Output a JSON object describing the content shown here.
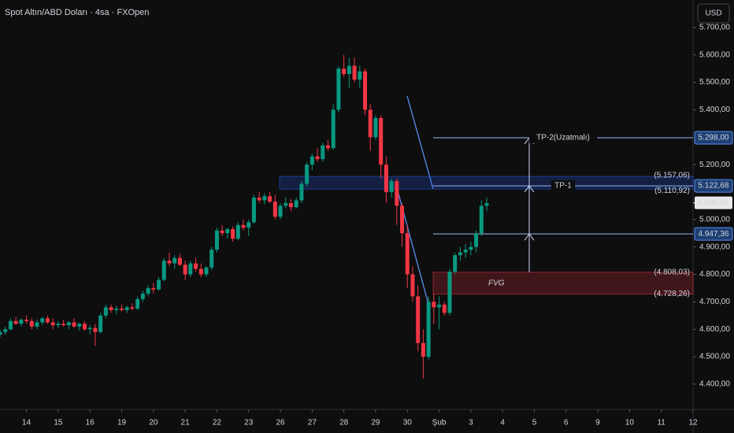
{
  "chart_data": {
    "type": "candlestick",
    "title": "Spot Altın/ABD Doları · 4sa · FXOpen",
    "currency_button": "USD",
    "up_color": "#089981",
    "down_color": "#f23645",
    "xlim": [
      1,
      132
    ],
    "xticks": [
      {
        "value": 6,
        "label": "14"
      },
      {
        "value": 12,
        "label": "15"
      },
      {
        "value": 18,
        "label": "16"
      },
      {
        "value": 24,
        "label": "19"
      },
      {
        "value": 30,
        "label": "20"
      },
      {
        "value": 36,
        "label": "21"
      },
      {
        "value": 42,
        "label": "22"
      },
      {
        "value": 48,
        "label": "23"
      },
      {
        "value": 54,
        "label": "26"
      },
      {
        "value": 60,
        "label": "27"
      },
      {
        "value": 66,
        "label": "28"
      },
      {
        "value": 72,
        "label": "29"
      },
      {
        "value": 78,
        "label": "30"
      },
      {
        "value": 84,
        "label": "Şub"
      },
      {
        "value": 90,
        "label": "3"
      },
      {
        "value": 96,
        "label": "4"
      },
      {
        "value": 102,
        "label": "5"
      },
      {
        "value": 108,
        "label": "6"
      },
      {
        "value": 114,
        "label": "9"
      },
      {
        "value": 120,
        "label": "10"
      },
      {
        "value": 126,
        "label": "11"
      },
      {
        "value": 132,
        "label": "12"
      }
    ],
    "ylim": [
      4308,
      5800
    ],
    "yticks": [
      {
        "value": 4400,
        "label": "4.400,00"
      },
      {
        "value": 4500,
        "label": "4.500,00"
      },
      {
        "value": 4600,
        "label": "4.600,00"
      },
      {
        "value": 4700,
        "label": "4.700,00"
      },
      {
        "value": 4800,
        "label": "4.800,00"
      },
      {
        "value": 4900,
        "label": "4.900,00"
      },
      {
        "value": 5000,
        "label": "5.000,00"
      },
      {
        "value": 5200,
        "label": "5.200,00"
      },
      {
        "value": 5400,
        "label": "5.400,00"
      },
      {
        "value": 5500,
        "label": "5.500,00"
      },
      {
        "value": 5600,
        "label": "5.600,00"
      },
      {
        "value": 5700,
        "label": "5.700,00"
      }
    ],
    "candles": [
      [
        4580,
        4600,
        4570,
        4590
      ],
      [
        4590,
        4610,
        4580,
        4600
      ],
      [
        4600,
        4640,
        4595,
        4630
      ],
      [
        4630,
        4645,
        4615,
        4620
      ],
      [
        4620,
        4640,
        4610,
        4635
      ],
      [
        4635,
        4650,
        4620,
        4630
      ],
      [
        4630,
        4640,
        4600,
        4610
      ],
      [
        4610,
        4635,
        4600,
        4625
      ],
      [
        4625,
        4645,
        4615,
        4640
      ],
      [
        4640,
        4650,
        4620,
        4625
      ],
      [
        4625,
        4640,
        4600,
        4615
      ],
      [
        4615,
        4630,
        4605,
        4620
      ],
      [
        4620,
        4635,
        4610,
        4615
      ],
      [
        4615,
        4630,
        4600,
        4625
      ],
      [
        4625,
        4640,
        4605,
        4610
      ],
      [
        4610,
        4625,
        4595,
        4620
      ],
      [
        4620,
        4630,
        4595,
        4600
      ],
      [
        4600,
        4615,
        4580,
        4605
      ],
      [
        4605,
        4620,
        4540,
        4590
      ],
      [
        4590,
        4660,
        4585,
        4650
      ],
      [
        4650,
        4690,
        4640,
        4680
      ],
      [
        4680,
        4690,
        4660,
        4670
      ],
      [
        4670,
        4685,
        4655,
        4675
      ],
      [
        4675,
        4690,
        4665,
        4670
      ],
      [
        4670,
        4685,
        4660,
        4680
      ],
      [
        4680,
        4695,
        4670,
        4675
      ],
      [
        4675,
        4720,
        4670,
        4710
      ],
      [
        4710,
        4740,
        4700,
        4730
      ],
      [
        4730,
        4760,
        4720,
        4750
      ],
      [
        4750,
        4770,
        4730,
        4745
      ],
      [
        4745,
        4790,
        4740,
        4780
      ],
      [
        4780,
        4860,
        4775,
        4850
      ],
      [
        4850,
        4880,
        4830,
        4840
      ],
      [
        4840,
        4870,
        4820,
        4860
      ],
      [
        4860,
        4875,
        4830,
        4835
      ],
      [
        4835,
        4850,
        4780,
        4800
      ],
      [
        4800,
        4850,
        4790,
        4840
      ],
      [
        4840,
        4860,
        4810,
        4820
      ],
      [
        4820,
        4840,
        4790,
        4800
      ],
      [
        4800,
        4830,
        4790,
        4825
      ],
      [
        4825,
        4900,
        4815,
        4890
      ],
      [
        4890,
        4970,
        4880,
        4960
      ],
      [
        4960,
        4980,
        4940,
        4950
      ],
      [
        4950,
        4970,
        4930,
        4965
      ],
      [
        4965,
        4975,
        4920,
        4930
      ],
      [
        4930,
        4990,
        4925,
        4980
      ],
      [
        4980,
        5000,
        4960,
        4970
      ],
      [
        4970,
        5000,
        4940,
        4990
      ],
      [
        4990,
        5090,
        4985,
        5080
      ],
      [
        5080,
        5100,
        5060,
        5070
      ],
      [
        5070,
        5095,
        5055,
        5085
      ],
      [
        5085,
        5100,
        5060,
        5065
      ],
      [
        5065,
        5090,
        5000,
        5010
      ],
      [
        5010,
        5060,
        5000,
        5050
      ],
      [
        5050,
        5080,
        5040,
        5060
      ],
      [
        5060,
        5075,
        5030,
        5045
      ],
      [
        5045,
        5080,
        5040,
        5070
      ],
      [
        5070,
        5140,
        5060,
        5130
      ],
      [
        5130,
        5210,
        5120,
        5200
      ],
      [
        5200,
        5240,
        5180,
        5230
      ],
      [
        5230,
        5260,
        5210,
        5220
      ],
      [
        5220,
        5280,
        5210,
        5270
      ],
      [
        5270,
        5290,
        5250,
        5260
      ],
      [
        5260,
        5420,
        5255,
        5400
      ],
      [
        5400,
        5560,
        5390,
        5550
      ],
      [
        5550,
        5600,
        5520,
        5530
      ],
      [
        5530,
        5590,
        5480,
        5560
      ],
      [
        5560,
        5590,
        5500,
        5510
      ],
      [
        5510,
        5560,
        5480,
        5540
      ],
      [
        5540,
        5550,
        5380,
        5400
      ],
      [
        5400,
        5420,
        5250,
        5300
      ],
      [
        5300,
        5380,
        5290,
        5370
      ],
      [
        5370,
        5380,
        5150,
        5200
      ],
      [
        5200,
        5230,
        5060,
        5100
      ],
      [
        5100,
        5150,
        5080,
        5140
      ],
      [
        5140,
        5150,
        4980,
        5050
      ],
      [
        5050,
        5060,
        4900,
        4950
      ],
      [
        4950,
        4980,
        4750,
        4800
      ],
      [
        4800,
        4830,
        4700,
        4720
      ],
      [
        4720,
        4760,
        4520,
        4550
      ],
      [
        4550,
        4600,
        4420,
        4500
      ],
      [
        4500,
        4720,
        4490,
        4700
      ],
      [
        4700,
        4730,
        4620,
        4680
      ],
      [
        4680,
        4720,
        4600,
        4690
      ],
      [
        4690,
        4700,
        4650,
        4660
      ],
      [
        4660,
        4820,
        4650,
        4810
      ],
      [
        4810,
        4880,
        4800,
        4870
      ],
      [
        4870,
        4900,
        4850,
        4880
      ],
      [
        4880,
        4910,
        4860,
        4890
      ],
      [
        4890,
        4920,
        4870,
        4900
      ],
      [
        4900,
        4960,
        4880,
        4950
      ],
      [
        4950,
        5070,
        4940,
        5050
      ],
      [
        5050,
        5080,
        5030,
        5060
      ]
    ],
    "levels": [
      {
        "value": 5298,
        "label": "5.298,00",
        "text": "TP-2(Uzatmalı)"
      },
      {
        "value": 5122.68,
        "label": "5.122,68",
        "text": "TP-1"
      },
      {
        "value": 4947.36,
        "label": "4.947,36"
      }
    ],
    "last_price": {
      "value": 5060.65,
      "label": "5.060,65"
    },
    "zones": [
      {
        "top": {
          "value": 5157.06,
          "label": "(5.157,06)"
        },
        "bottom": {
          "value": 5110.92,
          "label": "(5.110,92)"
        },
        "color": "#2962ff"
      },
      {
        "name": "FVG",
        "top": {
          "value": 4808.03,
          "label": "(4.808,03)"
        },
        "bottom": {
          "value": 4728.26,
          "label": "(4.728,26)"
        },
        "color": "#f23645"
      }
    ]
  }
}
